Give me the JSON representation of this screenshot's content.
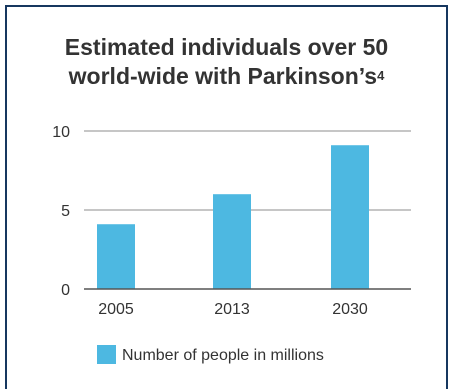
{
  "chart_data": {
    "type": "bar",
    "title": "Estimated individuals over 50 world-wide with Parkinson’s",
    "title_line1": "Estimated individuals over 50",
    "title_line2": "world-wide with Parkinson’s",
    "title_superscript": "4",
    "categories": [
      "2005",
      "2013",
      "2030"
    ],
    "series": [
      {
        "name": "Number of people in millions",
        "values": [
          4.1,
          6.0,
          9.1
        ]
      }
    ],
    "ylim": [
      0,
      10
    ],
    "yticks": [
      "0",
      "5",
      "10"
    ],
    "xlabel": "",
    "ylabel": "",
    "grid": true,
    "legend_position": "bottom",
    "colors": {
      "bar": "#4db8e1",
      "grid": "#8c8c8c",
      "border": "#16375f",
      "text": "#333333"
    }
  }
}
